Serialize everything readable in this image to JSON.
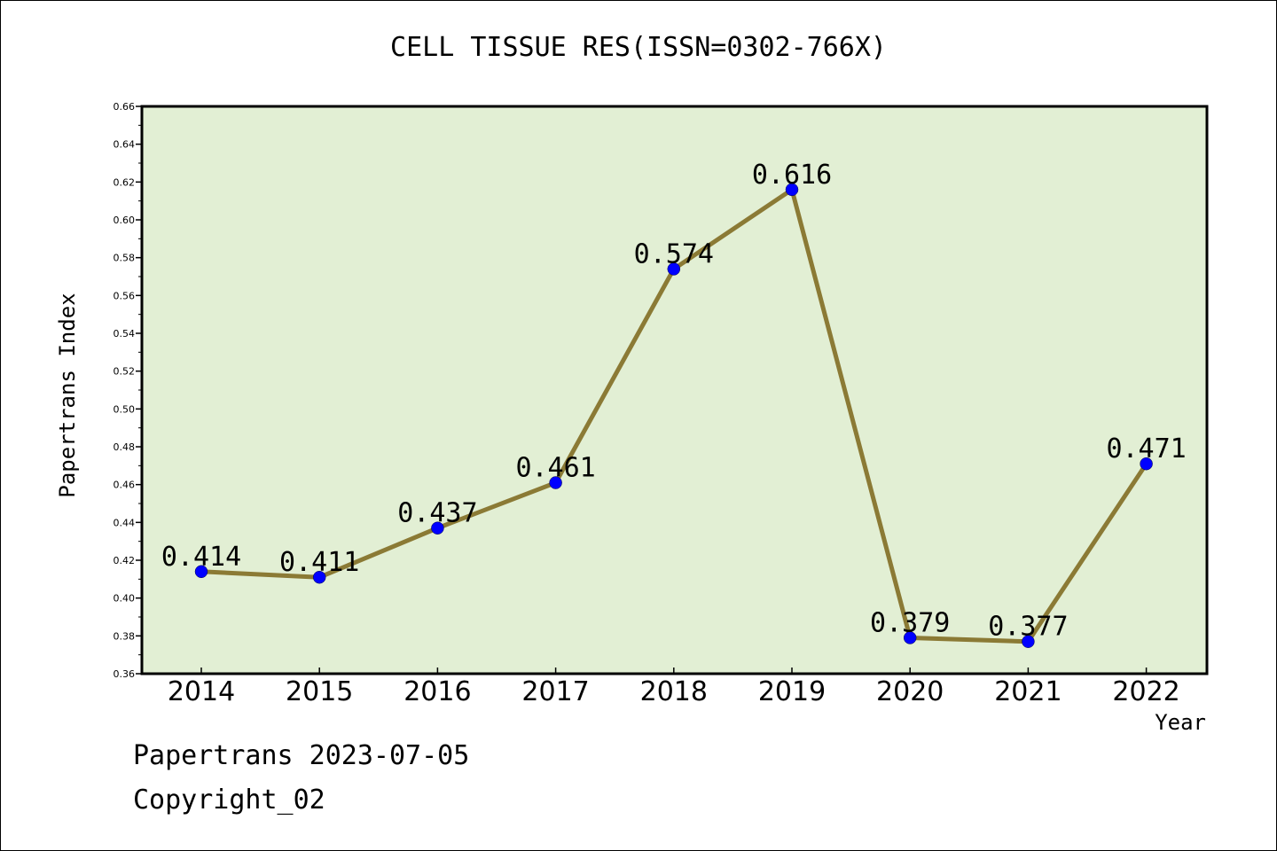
{
  "chart_data": {
    "type": "line",
    "title": "CELL TISSUE RES(ISSN=0302-766X)",
    "xlabel": "Year",
    "ylabel": "Papertrans Index",
    "categories": [
      "2014",
      "2015",
      "2016",
      "2017",
      "2018",
      "2019",
      "2020",
      "2021",
      "2022"
    ],
    "values": [
      0.414,
      0.411,
      0.437,
      0.461,
      0.574,
      0.616,
      0.379,
      0.377,
      0.471
    ],
    "data_labels": [
      "0.414",
      "0.411",
      "0.437",
      "0.461",
      "0.574",
      "0.616",
      "0.379",
      "0.377",
      "0.471"
    ],
    "ylim": [
      0.36,
      0.66
    ],
    "yticks": [
      "0.36",
      "0.38",
      "0.40",
      "0.42",
      "0.44",
      "0.46",
      "0.48",
      "0.50",
      "0.52",
      "0.54",
      "0.56",
      "0.58",
      "0.60",
      "0.62",
      "0.64",
      "0.66"
    ],
    "grid": false,
    "legend": "none",
    "colors": {
      "plot_background": "#e2efd4",
      "line": "#8b7a35",
      "marker": "#0000ff"
    }
  },
  "footer": {
    "line1": "Papertrans 2023-07-05",
    "line2": "Copyright_02"
  }
}
